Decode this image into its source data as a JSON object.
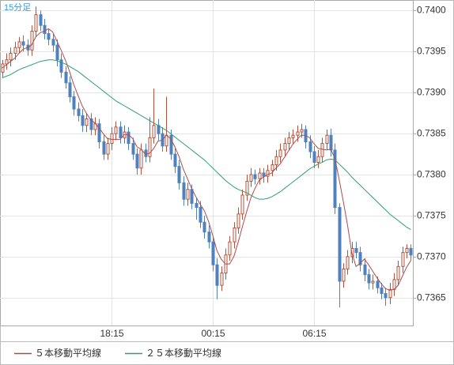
{
  "chart_data": {
    "type": "candlestick",
    "title": "15分足",
    "categories": [
      null,
      null,
      null,
      null,
      null,
      null,
      null,
      null,
      null,
      null,
      null,
      null,
      null,
      null,
      null,
      null,
      null,
      null,
      null,
      null,
      null,
      null,
      null,
      null,
      null,
      null,
      "18:15",
      null,
      null,
      null,
      null,
      null,
      null,
      null,
      null,
      null,
      null,
      null,
      null,
      null,
      null,
      null,
      null,
      null,
      null,
      null,
      null,
      null,
      null,
      null,
      "00:15",
      null,
      null,
      null,
      null,
      null,
      null,
      null,
      null,
      null,
      null,
      null,
      null,
      null,
      null,
      null,
      null,
      null,
      null,
      null,
      null,
      null,
      null,
      null,
      "06:15",
      null,
      null,
      null,
      null,
      null,
      null,
      null,
      null,
      null,
      null,
      null,
      null,
      null,
      null,
      null,
      null,
      null,
      null,
      null,
      null,
      null,
      null,
      null
    ],
    "open": [
      0.73925,
      0.73935,
      0.7394,
      0.73948,
      0.73955,
      0.73962,
      0.73958,
      0.73952,
      0.73975,
      0.73995,
      0.73982,
      0.73972,
      0.73965,
      0.73958,
      0.7394,
      0.73925,
      0.73912,
      0.73895,
      0.7388,
      0.73872,
      0.7386,
      0.73868,
      0.73855,
      0.73862,
      0.7384,
      0.73825,
      0.73838,
      0.7385,
      0.73858,
      0.73845,
      0.73852,
      0.73838,
      0.73825,
      0.73808,
      0.7383,
      0.73822,
      0.73845,
      0.7386,
      0.7385,
      0.73835,
      0.73848,
      0.73825,
      0.7381,
      0.7379,
      0.7377,
      0.73782,
      0.73765,
      0.7376,
      0.73742,
      0.7373,
      0.73718,
      0.7369,
      0.73665,
      0.7368,
      0.73702,
      0.73718,
      0.73735,
      0.73752,
      0.73775,
      0.73792,
      0.738,
      0.73795,
      0.73802,
      0.73798,
      0.73805,
      0.73812,
      0.73822,
      0.7383,
      0.73838,
      0.73845,
      0.73848,
      0.73852,
      0.73855,
      0.7384,
      0.73828,
      0.73815,
      0.73822,
      0.73838,
      0.73848,
      0.7383,
      0.7376,
      0.7367,
      0.73685,
      0.737,
      0.7371,
      0.73705,
      0.7369,
      0.73678,
      0.73668,
      0.7367,
      0.73662,
      0.73655,
      0.7365,
      0.7366,
      0.73672,
      0.73688,
      0.73705,
      0.7371
    ],
    "high": [
      0.7394,
      0.73948,
      0.73955,
      0.73962,
      0.73968,
      0.7397,
      0.73965,
      0.73982,
      0.74005,
      0.74,
      0.7399,
      0.73978,
      0.73972,
      0.73965,
      0.73948,
      0.73932,
      0.7392,
      0.73902,
      0.73888,
      0.7388,
      0.73875,
      0.73875,
      0.7387,
      0.73868,
      0.73848,
      0.73845,
      0.73858,
      0.73865,
      0.73865,
      0.7386,
      0.73858,
      0.73845,
      0.73832,
      0.73838,
      0.73838,
      0.7387,
      0.73905,
      0.73868,
      0.73858,
      0.73895,
      0.73855,
      0.73832,
      0.73818,
      0.73798,
      0.7379,
      0.73788,
      0.73772,
      0.73768,
      0.7375,
      0.73738,
      0.73725,
      0.73698,
      0.73688,
      0.7371,
      0.73725,
      0.73742,
      0.7376,
      0.73782,
      0.738,
      0.73808,
      0.73806,
      0.73808,
      0.73808,
      0.73812,
      0.73818,
      0.7383,
      0.73838,
      0.73845,
      0.73852,
      0.73855,
      0.7386,
      0.73862,
      0.7386,
      0.73848,
      0.73835,
      0.7383,
      0.73845,
      0.73855,
      0.73856,
      0.73838,
      0.73765,
      0.73692,
      0.73708,
      0.73718,
      0.73718,
      0.73712,
      0.73698,
      0.73685,
      0.73678,
      0.73676,
      0.73668,
      0.73662,
      0.73668,
      0.7368,
      0.73695,
      0.73712,
      0.73715,
      0.73715
    ],
    "low": [
      0.73918,
      0.73928,
      0.73932,
      0.7394,
      0.73948,
      0.7395,
      0.73945,
      0.73945,
      0.73968,
      0.73975,
      0.73965,
      0.73958,
      0.7395,
      0.73932,
      0.73918,
      0.73905,
      0.73888,
      0.73872,
      0.73865,
      0.73852,
      0.73852,
      0.73848,
      0.73848,
      0.73832,
      0.73818,
      0.73818,
      0.7383,
      0.73842,
      0.73838,
      0.73838,
      0.7383,
      0.73818,
      0.738,
      0.738,
      0.73815,
      0.73815,
      0.73838,
      0.73842,
      0.73828,
      0.73828,
      0.73818,
      0.73802,
      0.73782,
      0.73762,
      0.73762,
      0.73758,
      0.73745,
      0.73735,
      0.73722,
      0.7371,
      0.73682,
      0.73648,
      0.73658,
      0.73672,
      0.73695,
      0.7371,
      0.73728,
      0.73745,
      0.73768,
      0.73785,
      0.73788,
      0.73788,
      0.7379,
      0.7379,
      0.73798,
      0.73805,
      0.73815,
      0.73822,
      0.7383,
      0.73838,
      0.7384,
      0.73845,
      0.73832,
      0.7382,
      0.73808,
      0.73808,
      0.73815,
      0.7383,
      0.73822,
      0.73752,
      0.73638,
      0.73662,
      0.73678,
      0.73692,
      0.73698,
      0.73682,
      0.7367,
      0.7366,
      0.7366,
      0.73655,
      0.73648,
      0.7364,
      0.73642,
      0.73652,
      0.73665,
      0.7368,
      0.73698,
      0.73695
    ],
    "close": [
      0.73935,
      0.7394,
      0.73948,
      0.73955,
      0.73962,
      0.73958,
      0.73952,
      0.73975,
      0.73995,
      0.73982,
      0.73972,
      0.73965,
      0.73958,
      0.7394,
      0.73925,
      0.73912,
      0.73895,
      0.7388,
      0.73872,
      0.7386,
      0.73868,
      0.73855,
      0.73862,
      0.7384,
      0.73825,
      0.73838,
      0.7385,
      0.73858,
      0.73845,
      0.73852,
      0.73838,
      0.73825,
      0.73808,
      0.7383,
      0.73822,
      0.73845,
      0.7386,
      0.7385,
      0.73835,
      0.73848,
      0.73825,
      0.7381,
      0.7379,
      0.7377,
      0.73782,
      0.73765,
      0.7376,
      0.73742,
      0.7373,
      0.73718,
      0.7369,
      0.73665,
      0.7368,
      0.73702,
      0.73718,
      0.73735,
      0.73752,
      0.73775,
      0.73792,
      0.738,
      0.73795,
      0.73802,
      0.73798,
      0.73805,
      0.73812,
      0.73822,
      0.7383,
      0.73838,
      0.73845,
      0.73848,
      0.73852,
      0.73855,
      0.7384,
      0.73828,
      0.73815,
      0.73822,
      0.73838,
      0.73848,
      0.7383,
      0.7376,
      0.7367,
      0.73685,
      0.737,
      0.7371,
      0.73705,
      0.7369,
      0.73678,
      0.73668,
      0.7367,
      0.73662,
      0.73655,
      0.7365,
      0.7366,
      0.73672,
      0.73688,
      0.73705,
      0.7371,
      0.73702
    ],
    "candle_colors": {
      "up": "#b5523b",
      "down": "#4f81bd"
    },
    "series": [
      {
        "name": "５本移動平均線",
        "color": "#b04a4a",
        "values": [
          0.7393,
          0.73934,
          0.73938,
          0.73942,
          0.73948,
          0.73953,
          0.73955,
          0.73958,
          0.73968,
          0.73973,
          0.73975,
          0.73978,
          0.73974,
          0.73963,
          0.73952,
          0.7394,
          0.73926,
          0.7391,
          0.73897,
          0.73884,
          0.73875,
          0.73867,
          0.73863,
          0.73857,
          0.7385,
          0.73844,
          0.73843,
          0.73843,
          0.73843,
          0.73849,
          0.73849,
          0.73844,
          0.73834,
          0.73831,
          0.73825,
          0.73826,
          0.73832,
          0.73841,
          0.73842,
          0.73848,
          0.73844,
          0.73834,
          0.73822,
          0.73807,
          0.73795,
          0.73783,
          0.73773,
          0.73764,
          0.73756,
          0.73743,
          0.73726,
          0.73707,
          0.73697,
          0.73691,
          0.73691,
          0.737,
          0.73717,
          0.73736,
          0.73754,
          0.73771,
          0.73783,
          0.73793,
          0.73797,
          0.738,
          0.73802,
          0.73808,
          0.73813,
          0.73821,
          0.73829,
          0.73837,
          0.73843,
          0.73848,
          0.73848,
          0.73845,
          0.73838,
          0.73832,
          0.73831,
          0.7383,
          0.73831,
          0.7382,
          0.73794,
          0.73767,
          0.73738,
          0.73705,
          0.73688,
          0.73692,
          0.73697,
          0.7369,
          0.73682,
          0.73674,
          0.73667,
          0.73661,
          0.73659,
          0.7366,
          0.73665,
          0.73676,
          0.73687,
          0.73695
        ]
      },
      {
        "name": "２５本移動平均線",
        "color": "#2e9e78",
        "values": [
          0.73918,
          0.7392,
          0.73922,
          0.73925,
          0.73928,
          0.7393,
          0.73932,
          0.73934,
          0.73936,
          0.73938,
          0.73939,
          0.7394,
          0.7394,
          0.73939,
          0.73937,
          0.73935,
          0.73932,
          0.73929,
          0.73926,
          0.73922,
          0.73918,
          0.73914,
          0.7391,
          0.73906,
          0.73902,
          0.73898,
          0.73894,
          0.7389,
          0.73887,
          0.73884,
          0.73881,
          0.73878,
          0.73875,
          0.73872,
          0.73869,
          0.73866,
          0.73863,
          0.7386,
          0.73857,
          0.73854,
          0.7385,
          0.73846,
          0.73842,
          0.73838,
          0.73834,
          0.7383,
          0.73826,
          0.73822,
          0.73818,
          0.73813,
          0.73808,
          0.73803,
          0.73798,
          0.73793,
          0.73789,
          0.73785,
          0.73782,
          0.7378,
          0.73778,
          0.73775,
          0.73772,
          0.7377,
          0.7377,
          0.73771,
          0.73773,
          0.73776,
          0.73779,
          0.73783,
          0.73787,
          0.73791,
          0.73795,
          0.73799,
          0.73803,
          0.73807,
          0.7381,
          0.73813,
          0.73815,
          0.73818,
          0.73819,
          0.73818,
          0.73813,
          0.73808,
          0.73803,
          0.73797,
          0.73792,
          0.73787,
          0.73782,
          0.73777,
          0.73772,
          0.73767,
          0.73762,
          0.73757,
          0.73752,
          0.73748,
          0.73744,
          0.7374,
          0.73736,
          0.73733
        ]
      }
    ],
    "ylim": [
      0.73616,
      0.74013
    ],
    "yticks": [
      {
        "value": 0.74,
        "label": "0.7400"
      },
      0.7395,
      {
        "value": 0.739,
        "label": "0.7390"
      },
      0.7385,
      {
        "value": 0.738,
        "label": "0.7380"
      },
      0.7375,
      {
        "value": 0.737,
        "label": "0.7370"
      },
      0.7365
    ],
    "grid": true
  }
}
